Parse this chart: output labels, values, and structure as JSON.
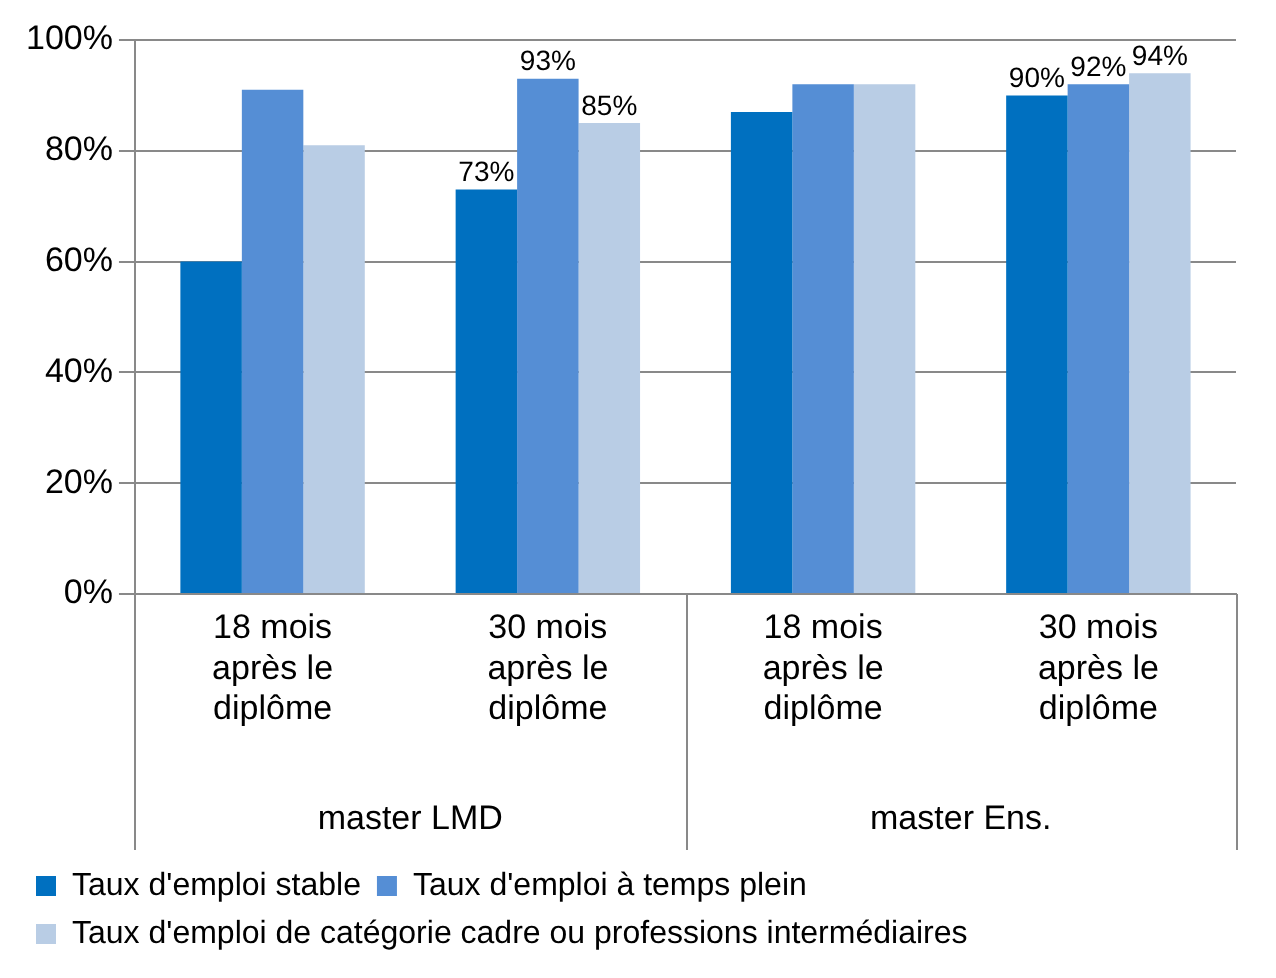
{
  "chart_data": {
    "type": "bar",
    "categories": [
      "18 mois après le diplôme",
      "30 mois après le diplôme",
      "18 mois après le diplôme",
      "30 mois après le diplôme"
    ],
    "series": [
      {
        "name": "Taux d'emploi stable",
        "color": "#0070c0",
        "values": [
          60,
          73,
          87,
          90
        ],
        "value_labels": [
          null,
          "73%",
          null,
          "90%"
        ]
      },
      {
        "name": "Taux d'emploi à temps plein",
        "color": "#558ed5",
        "values": [
          91,
          93,
          92,
          92
        ],
        "value_labels": [
          null,
          "93%",
          null,
          "92%"
        ]
      },
      {
        "name": "Taux d'emploi de catégorie cadre ou professions intermédiaires",
        "color": "#b9cde5",
        "values": [
          81,
          85,
          92,
          94
        ],
        "value_labels": [
          null,
          "85%",
          null,
          "94%"
        ]
      }
    ],
    "annotations": [
      "master LMD",
      "master Ens."
    ],
    "ylim": [
      0,
      100
    ],
    "yticks": [
      {
        "value": 0,
        "label": "0%"
      },
      {
        "value": 20,
        "label": "20%"
      },
      {
        "value": 40,
        "label": "40%"
      },
      {
        "value": 60,
        "label": "60%"
      },
      {
        "value": 80,
        "label": "80%"
      },
      {
        "value": 100,
        "label": "100%"
      }
    ],
    "grid": "y",
    "legend": "bottom"
  }
}
